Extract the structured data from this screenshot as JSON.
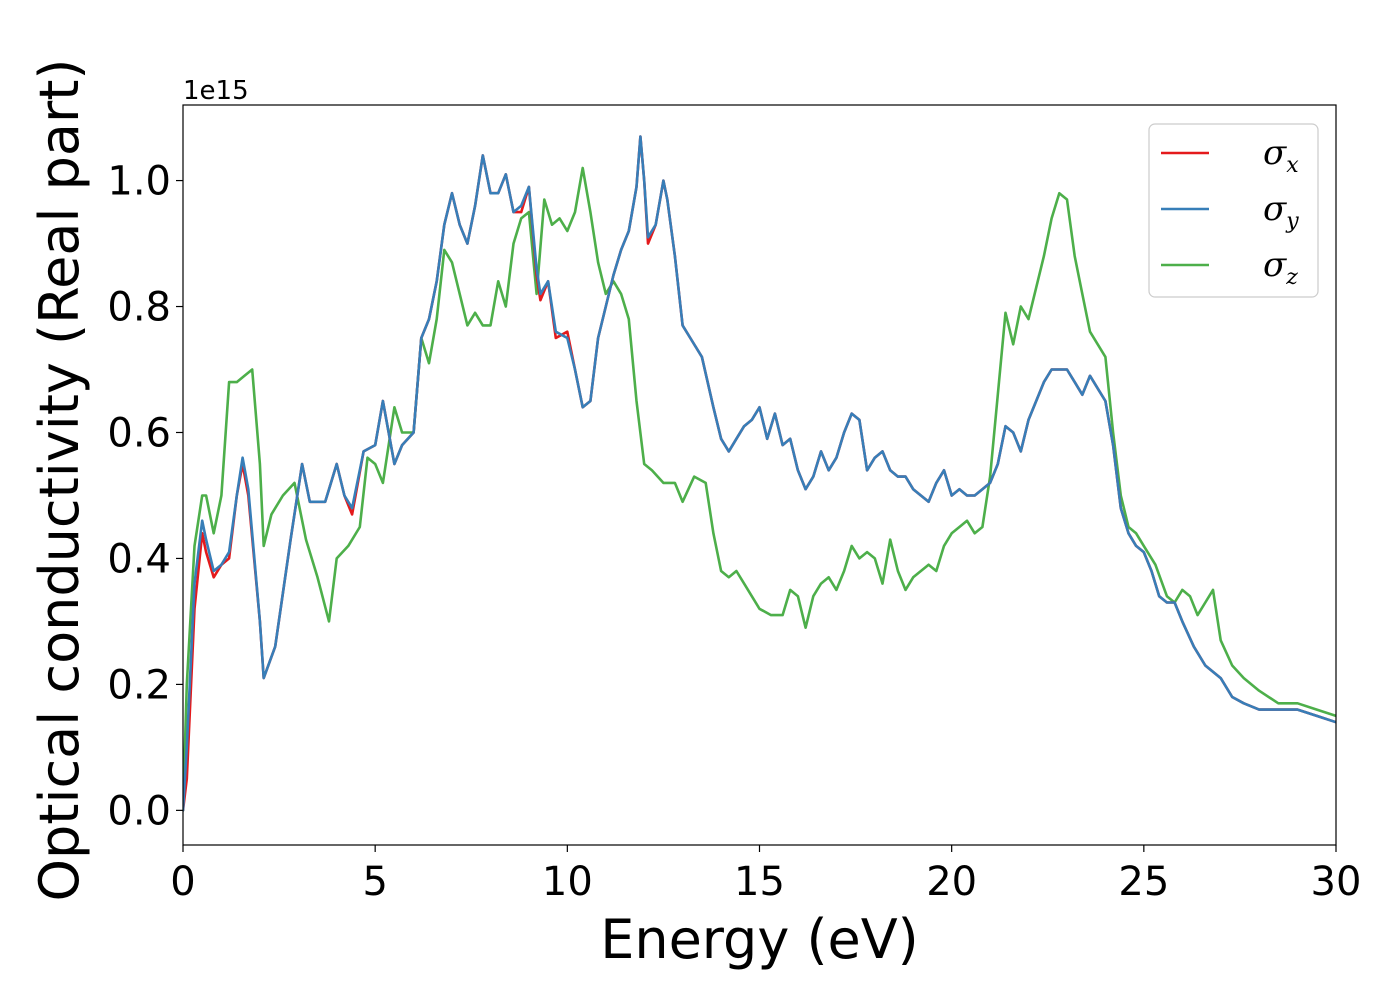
{
  "chart_data": {
    "type": "line",
    "xlabel": "Energy (eV)",
    "ylabel": "Optical conductivity (Real part)",
    "y_offset_label": "1e15",
    "xlim": [
      0,
      30
    ],
    "ylim": [
      -0.055,
      1.12
    ],
    "x_ticks": [
      0,
      5,
      10,
      15,
      20,
      25,
      30
    ],
    "x_tick_labels": [
      "0",
      "5",
      "10",
      "15",
      "20",
      "25",
      "30"
    ],
    "y_ticks": [
      0.0,
      0.2,
      0.4,
      0.6,
      0.8,
      1.0
    ],
    "y_tick_labels": [
      "0.0",
      "0.2",
      "0.4",
      "0.6",
      "0.8",
      "1.0"
    ],
    "grid": false,
    "legend_position": "top-right",
    "series": [
      {
        "name": "σx",
        "symbol": "σ",
        "subscript": "x",
        "color": "#e41a1c",
        "x": [
          0,
          0.1,
          0.3,
          0.5,
          0.6,
          0.8,
          1.0,
          1.2,
          1.4,
          1.55,
          1.7,
          2.0,
          2.1,
          2.4,
          2.8,
          3.1,
          3.3,
          3.7,
          4.0,
          4.2,
          4.4,
          4.7,
          5.0,
          5.2,
          5.5,
          5.7,
          6.0,
          6.2,
          6.4,
          6.6,
          6.8,
          7.0,
          7.2,
          7.4,
          7.6,
          7.8,
          8.0,
          8.2,
          8.4,
          8.6,
          8.8,
          9.0,
          9.2,
          9.3,
          9.5,
          9.7,
          10.0,
          10.2,
          10.4,
          10.6,
          10.8,
          11.0,
          11.2,
          11.4,
          11.6,
          11.8,
          11.9,
          12.0,
          12.1,
          12.3,
          12.5,
          12.6,
          12.8,
          13.0,
          13.2,
          13.5,
          13.8,
          14.0,
          14.2,
          14.4,
          14.6,
          14.8,
          15.0,
          15.2,
          15.4,
          15.6,
          15.8,
          16.0,
          16.2,
          16.4,
          16.6,
          16.8,
          17.0,
          17.2,
          17.4,
          17.6,
          17.8,
          18.0,
          18.2,
          18.4,
          18.6,
          18.8,
          19.0,
          19.2,
          19.4,
          19.6,
          19.8,
          20.0,
          20.2,
          20.4,
          20.6,
          20.8,
          21.0,
          21.2,
          21.4,
          21.6,
          21.8,
          22.0,
          22.2,
          22.4,
          22.6,
          22.8,
          23.0,
          23.2,
          23.4,
          23.6,
          23.8,
          24.0,
          24.2,
          24.4,
          24.6,
          24.8,
          25.0,
          25.2,
          25.4,
          25.6,
          25.8,
          26.0,
          26.3,
          26.6,
          27.0,
          27.3,
          27.6,
          28.0,
          28.5,
          29.0,
          29.5,
          30.0
        ],
        "y": [
          0.0,
          0.05,
          0.32,
          0.44,
          0.41,
          0.37,
          0.39,
          0.4,
          0.5,
          0.55,
          0.5,
          0.3,
          0.21,
          0.26,
          0.43,
          0.55,
          0.49,
          0.49,
          0.55,
          0.5,
          0.47,
          0.57,
          0.58,
          0.65,
          0.55,
          0.58,
          0.6,
          0.75,
          0.78,
          0.84,
          0.93,
          0.98,
          0.93,
          0.9,
          0.96,
          1.04,
          0.98,
          0.98,
          1.01,
          0.95,
          0.95,
          0.99,
          0.85,
          0.81,
          0.84,
          0.75,
          0.76,
          0.7,
          0.64,
          0.65,
          0.75,
          0.8,
          0.85,
          0.89,
          0.92,
          0.99,
          1.07,
          1.0,
          0.9,
          0.93,
          1.0,
          0.97,
          0.88,
          0.77,
          0.75,
          0.72,
          0.64,
          0.59,
          0.57,
          0.59,
          0.61,
          0.62,
          0.64,
          0.59,
          0.63,
          0.58,
          0.59,
          0.54,
          0.51,
          0.53,
          0.57,
          0.54,
          0.56,
          0.6,
          0.63,
          0.62,
          0.54,
          0.56,
          0.57,
          0.54,
          0.53,
          0.53,
          0.51,
          0.5,
          0.49,
          0.52,
          0.54,
          0.5,
          0.51,
          0.5,
          0.5,
          0.51,
          0.52,
          0.55,
          0.61,
          0.6,
          0.57,
          0.62,
          0.65,
          0.68,
          0.7,
          0.7,
          0.7,
          0.68,
          0.66,
          0.69,
          0.67,
          0.65,
          0.58,
          0.48,
          0.44,
          0.42,
          0.41,
          0.38,
          0.34,
          0.33,
          0.33,
          0.3,
          0.26,
          0.23,
          0.21,
          0.18,
          0.17,
          0.16,
          0.16,
          0.16,
          0.15,
          0.14
        ]
      },
      {
        "name": "σy",
        "symbol": "σ",
        "subscript": "y",
        "color": "#377eb8",
        "x": [
          0,
          0.1,
          0.3,
          0.5,
          0.6,
          0.8,
          1.0,
          1.2,
          1.4,
          1.55,
          1.7,
          2.0,
          2.1,
          2.4,
          2.8,
          3.1,
          3.3,
          3.7,
          4.0,
          4.2,
          4.4,
          4.7,
          5.0,
          5.2,
          5.5,
          5.7,
          6.0,
          6.2,
          6.4,
          6.6,
          6.8,
          7.0,
          7.2,
          7.4,
          7.6,
          7.8,
          8.0,
          8.2,
          8.4,
          8.6,
          8.8,
          9.0,
          9.2,
          9.3,
          9.5,
          9.7,
          10.0,
          10.2,
          10.4,
          10.6,
          10.8,
          11.0,
          11.2,
          11.4,
          11.6,
          11.8,
          11.9,
          12.0,
          12.1,
          12.3,
          12.5,
          12.6,
          12.8,
          13.0,
          13.2,
          13.5,
          13.8,
          14.0,
          14.2,
          14.4,
          14.6,
          14.8,
          15.0,
          15.2,
          15.4,
          15.6,
          15.8,
          16.0,
          16.2,
          16.4,
          16.6,
          16.8,
          17.0,
          17.2,
          17.4,
          17.6,
          17.8,
          18.0,
          18.2,
          18.4,
          18.6,
          18.8,
          19.0,
          19.2,
          19.4,
          19.6,
          19.8,
          20.0,
          20.2,
          20.4,
          20.6,
          20.8,
          21.0,
          21.2,
          21.4,
          21.6,
          21.8,
          22.0,
          22.2,
          22.4,
          22.6,
          22.8,
          23.0,
          23.2,
          23.4,
          23.6,
          23.8,
          24.0,
          24.2,
          24.4,
          24.6,
          24.8,
          25.0,
          25.2,
          25.4,
          25.6,
          25.8,
          26.0,
          26.3,
          26.6,
          27.0,
          27.3,
          27.6,
          28.0,
          28.5,
          29.0,
          29.5,
          30.0
        ],
        "y": [
          0.0,
          0.1,
          0.36,
          0.46,
          0.43,
          0.38,
          0.39,
          0.41,
          0.5,
          0.56,
          0.51,
          0.3,
          0.21,
          0.26,
          0.43,
          0.55,
          0.49,
          0.49,
          0.55,
          0.5,
          0.48,
          0.57,
          0.58,
          0.65,
          0.55,
          0.58,
          0.6,
          0.75,
          0.78,
          0.84,
          0.93,
          0.98,
          0.93,
          0.9,
          0.96,
          1.04,
          0.98,
          0.98,
          1.01,
          0.95,
          0.96,
          0.99,
          0.86,
          0.82,
          0.84,
          0.76,
          0.75,
          0.7,
          0.64,
          0.65,
          0.75,
          0.8,
          0.85,
          0.89,
          0.92,
          0.99,
          1.07,
          1.0,
          0.91,
          0.93,
          1.0,
          0.97,
          0.88,
          0.77,
          0.75,
          0.72,
          0.64,
          0.59,
          0.57,
          0.59,
          0.61,
          0.62,
          0.64,
          0.59,
          0.63,
          0.58,
          0.59,
          0.54,
          0.51,
          0.53,
          0.57,
          0.54,
          0.56,
          0.6,
          0.63,
          0.62,
          0.54,
          0.56,
          0.57,
          0.54,
          0.53,
          0.53,
          0.51,
          0.5,
          0.49,
          0.52,
          0.54,
          0.5,
          0.51,
          0.5,
          0.5,
          0.51,
          0.52,
          0.55,
          0.61,
          0.6,
          0.57,
          0.62,
          0.65,
          0.68,
          0.7,
          0.7,
          0.7,
          0.68,
          0.66,
          0.69,
          0.67,
          0.65,
          0.58,
          0.48,
          0.44,
          0.42,
          0.41,
          0.38,
          0.34,
          0.33,
          0.33,
          0.3,
          0.26,
          0.23,
          0.21,
          0.18,
          0.17,
          0.16,
          0.16,
          0.16,
          0.15,
          0.14
        ]
      },
      {
        "name": "σz",
        "symbol": "σ",
        "subscript": "z",
        "color": "#4daf4a",
        "x": [
          0,
          0.1,
          0.3,
          0.5,
          0.6,
          0.8,
          1.0,
          1.2,
          1.4,
          1.6,
          1.8,
          2.0,
          2.1,
          2.3,
          2.6,
          2.9,
          3.2,
          3.5,
          3.8,
          4.0,
          4.3,
          4.6,
          4.8,
          5.0,
          5.2,
          5.5,
          5.7,
          6.0,
          6.2,
          6.4,
          6.6,
          6.8,
          7.0,
          7.2,
          7.4,
          7.6,
          7.8,
          8.0,
          8.2,
          8.4,
          8.6,
          8.8,
          9.0,
          9.2,
          9.4,
          9.6,
          9.8,
          10.0,
          10.2,
          10.4,
          10.6,
          10.8,
          11.0,
          11.2,
          11.4,
          11.6,
          11.8,
          12.0,
          12.2,
          12.5,
          12.8,
          13.0,
          13.3,
          13.6,
          13.8,
          14.0,
          14.2,
          14.4,
          14.6,
          14.8,
          15.0,
          15.3,
          15.6,
          15.8,
          16.0,
          16.2,
          16.4,
          16.6,
          16.8,
          17.0,
          17.2,
          17.4,
          17.6,
          17.8,
          18.0,
          18.2,
          18.4,
          18.6,
          18.8,
          19.0,
          19.2,
          19.4,
          19.6,
          19.8,
          20.0,
          20.2,
          20.4,
          20.6,
          20.8,
          21.0,
          21.2,
          21.4,
          21.6,
          21.8,
          22.0,
          22.2,
          22.4,
          22.6,
          22.8,
          23.0,
          23.2,
          23.4,
          23.6,
          23.8,
          24.0,
          24.2,
          24.4,
          24.6,
          24.8,
          25.0,
          25.3,
          25.6,
          25.8,
          26.0,
          26.2,
          26.4,
          26.6,
          26.8,
          27.0,
          27.3,
          27.6,
          28.0,
          28.5,
          29.0,
          29.5,
          30.0
        ],
        "y": [
          0.0,
          0.2,
          0.42,
          0.5,
          0.5,
          0.44,
          0.5,
          0.68,
          0.68,
          0.69,
          0.7,
          0.55,
          0.42,
          0.47,
          0.5,
          0.52,
          0.43,
          0.37,
          0.3,
          0.4,
          0.42,
          0.45,
          0.56,
          0.55,
          0.52,
          0.64,
          0.6,
          0.6,
          0.75,
          0.71,
          0.78,
          0.89,
          0.87,
          0.82,
          0.77,
          0.79,
          0.77,
          0.77,
          0.84,
          0.8,
          0.9,
          0.94,
          0.95,
          0.82,
          0.97,
          0.93,
          0.94,
          0.92,
          0.95,
          1.02,
          0.95,
          0.87,
          0.82,
          0.84,
          0.82,
          0.78,
          0.65,
          0.55,
          0.54,
          0.52,
          0.52,
          0.49,
          0.53,
          0.52,
          0.44,
          0.38,
          0.37,
          0.38,
          0.36,
          0.34,
          0.32,
          0.31,
          0.31,
          0.35,
          0.34,
          0.29,
          0.34,
          0.36,
          0.37,
          0.35,
          0.38,
          0.42,
          0.4,
          0.41,
          0.4,
          0.36,
          0.43,
          0.38,
          0.35,
          0.37,
          0.38,
          0.39,
          0.38,
          0.42,
          0.44,
          0.45,
          0.46,
          0.44,
          0.45,
          0.53,
          0.66,
          0.79,
          0.74,
          0.8,
          0.78,
          0.83,
          0.88,
          0.94,
          0.98,
          0.97,
          0.88,
          0.82,
          0.76,
          0.74,
          0.72,
          0.6,
          0.5,
          0.45,
          0.44,
          0.42,
          0.39,
          0.34,
          0.33,
          0.35,
          0.34,
          0.31,
          0.33,
          0.35,
          0.27,
          0.23,
          0.21,
          0.19,
          0.17,
          0.17,
          0.16,
          0.15
        ]
      }
    ]
  }
}
